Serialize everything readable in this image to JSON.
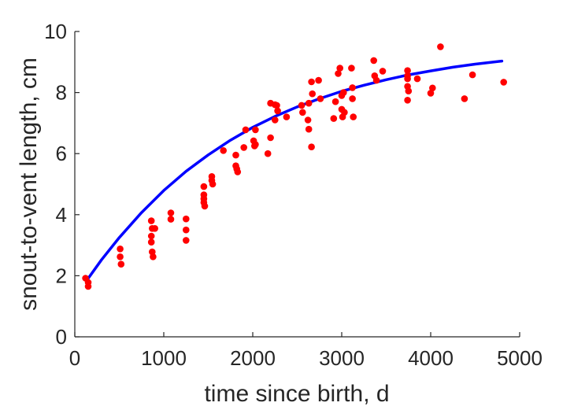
{
  "chart_data": {
    "type": "scatter",
    "title": "",
    "xlabel": "time since birth, d",
    "ylabel": "snout-to-vent length, cm",
    "xlim": [
      0,
      5000
    ],
    "ylim": [
      0,
      10
    ],
    "xticks": [
      0,
      1000,
      2000,
      3000,
      4000,
      5000
    ],
    "yticks": [
      0,
      2,
      4,
      6,
      8,
      10
    ],
    "xtick_labels": [
      "0",
      "1000",
      "2000",
      "3000",
      "4000",
      "5000"
    ],
    "ytick_labels": [
      "0",
      "2",
      "4",
      "6",
      "8",
      "10"
    ],
    "grid": false,
    "legend": "none",
    "colors": {
      "points": "#ff0000",
      "fit": "#0000ff",
      "axis": "#262626"
    },
    "series": [
      {
        "kind": "scatter",
        "x": [
          120,
          150,
          150,
          510,
          510,
          520,
          860,
          860,
          860,
          870,
          880,
          870,
          900,
          1080,
          1080,
          1250,
          1250,
          1250,
          1450,
          1450,
          1450,
          1450,
          1460,
          1540,
          1540,
          1550,
          1670,
          1810,
          1810,
          1820,
          1830,
          1900,
          1920,
          2010,
          2030,
          2030,
          2020,
          2170,
          2200,
          2200,
          2250,
          2250,
          2270,
          2280,
          2380,
          2550,
          2560,
          2620,
          2630,
          2630,
          2660,
          2670,
          2660,
          2740,
          2760,
          2910,
          2930,
          2960,
          2980,
          3000,
          3000,
          3010,
          3030,
          3020,
          3110,
          3120,
          3120,
          3130,
          3360,
          3370,
          3390,
          3460,
          3740,
          3740,
          3740,
          3740,
          3750,
          3740,
          3850,
          4000,
          4020,
          4110,
          4380,
          4470,
          4820
        ],
        "y": [
          1.92,
          1.78,
          1.65,
          2.88,
          2.62,
          2.38,
          3.8,
          3.3,
          3.1,
          2.78,
          2.62,
          3.55,
          3.55,
          4.06,
          3.85,
          3.86,
          3.5,
          3.16,
          4.92,
          4.65,
          4.52,
          4.4,
          4.28,
          5.25,
          5.12,
          5.0,
          6.1,
          5.95,
          5.6,
          5.5,
          5.4,
          6.2,
          6.78,
          6.42,
          6.3,
          6.78,
          6.25,
          6.0,
          7.65,
          6.52,
          7.6,
          7.1,
          7.58,
          7.4,
          7.2,
          7.58,
          7.35,
          7.1,
          6.8,
          7.65,
          6.22,
          7.96,
          8.35,
          8.4,
          7.8,
          7.15,
          7.7,
          8.62,
          8.8,
          7.9,
          7.45,
          7.2,
          7.35,
          8.0,
          8.8,
          8.16,
          7.8,
          7.2,
          9.05,
          8.55,
          8.4,
          8.7,
          8.72,
          8.55,
          8.45,
          8.2,
          8.05,
          7.75,
          8.45,
          7.98,
          8.15,
          9.5,
          7.8,
          8.58,
          8.34
        ]
      },
      {
        "kind": "line",
        "x": [
          130,
          300,
          500,
          750,
          1000,
          1250,
          1500,
          1750,
          2000,
          2250,
          2500,
          2750,
          3000,
          3250,
          3500,
          3750,
          4000,
          4250,
          4500,
          4800
        ],
        "y": [
          1.83,
          2.52,
          3.25,
          4.07,
          4.79,
          5.42,
          5.96,
          6.44,
          6.86,
          7.22,
          7.53,
          7.8,
          8.04,
          8.24,
          8.42,
          8.58,
          8.71,
          8.83,
          8.93,
          9.03
        ]
      }
    ]
  }
}
